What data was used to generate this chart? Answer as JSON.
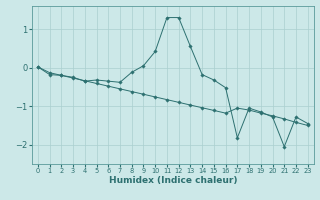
{
  "xlabel": "Humidex (Indice chaleur)",
  "background_color": "#cce8e8",
  "line_color": "#2d7070",
  "marker_color": "#2d7070",
  "grid_color": "#aacfcf",
  "xlim": [
    -0.5,
    23.5
  ],
  "ylim": [
    -2.5,
    1.6
  ],
  "yticks": [
    -2,
    -1,
    0,
    1
  ],
  "xticks": [
    0,
    1,
    2,
    3,
    4,
    5,
    6,
    7,
    8,
    9,
    10,
    11,
    12,
    13,
    14,
    15,
    16,
    17,
    18,
    19,
    20,
    21,
    22,
    23
  ],
  "series1_x": [
    0,
    1,
    2,
    3,
    4,
    5,
    6,
    7,
    8,
    9,
    10,
    11,
    12,
    13,
    14,
    15,
    16,
    17,
    18,
    19,
    20,
    21,
    22,
    23
  ],
  "series1_y": [
    0.02,
    -0.18,
    -0.2,
    -0.25,
    -0.35,
    -0.32,
    -0.35,
    -0.38,
    -0.12,
    0.05,
    0.42,
    1.3,
    1.3,
    0.55,
    -0.18,
    -0.32,
    -0.52,
    -1.82,
    -1.05,
    -1.15,
    -1.28,
    -2.05,
    -1.28,
    -1.45
  ],
  "series2_x": [
    0,
    1,
    2,
    3,
    4,
    5,
    6,
    7,
    8,
    9,
    10,
    11,
    12,
    13,
    14,
    15,
    16,
    17,
    18,
    19,
    20,
    21,
    22,
    23
  ],
  "series2_y": [
    0.02,
    -0.13,
    -0.2,
    -0.27,
    -0.34,
    -0.41,
    -0.48,
    -0.55,
    -0.62,
    -0.69,
    -0.76,
    -0.83,
    -0.9,
    -0.97,
    -1.04,
    -1.11,
    -1.18,
    -1.05,
    -1.1,
    -1.18,
    -1.25,
    -1.33,
    -1.42,
    -1.5
  ]
}
